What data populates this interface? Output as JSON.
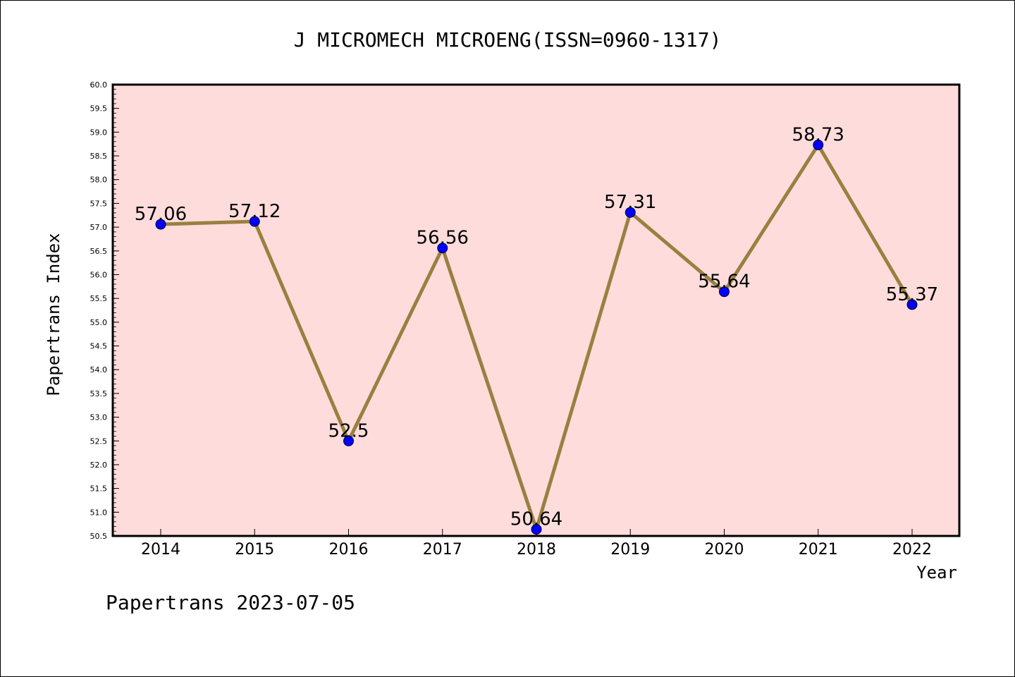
{
  "chart_data": {
    "type": "line",
    "title": "J MICROMECH MICROENG(ISSN=0960-1317)",
    "xlabel": "Year",
    "ylabel": "Papertrans Index",
    "categories": [
      "2014",
      "2015",
      "2016",
      "2017",
      "2018",
      "2019",
      "2020",
      "2021",
      "2022"
    ],
    "values": [
      57.06,
      57.12,
      52.5,
      56.56,
      50.64,
      57.31,
      55.64,
      58.73,
      55.37
    ],
    "data_labels": [
      "57.06",
      "57.12",
      "52.5",
      "56.56",
      "50.64",
      "57.31",
      "55.64",
      "58.73",
      "55.37"
    ],
    "ylim": [
      50.5,
      60.0
    ],
    "yticks": [
      "50.5",
      "51.0",
      "51.5",
      "52.0",
      "52.5",
      "53.0",
      "53.5",
      "54.0",
      "54.5",
      "55.0",
      "55.5",
      "56.0",
      "56.5",
      "57.0",
      "57.5",
      "58.0",
      "58.5",
      "59.0",
      "59.5",
      "60.0"
    ],
    "grid": false,
    "legend": "none",
    "colors": {
      "plot_background": "#ffdcdc",
      "line": "#998040",
      "marker": "#0000ff"
    }
  },
  "footer": "Papertrans 2023-07-05"
}
